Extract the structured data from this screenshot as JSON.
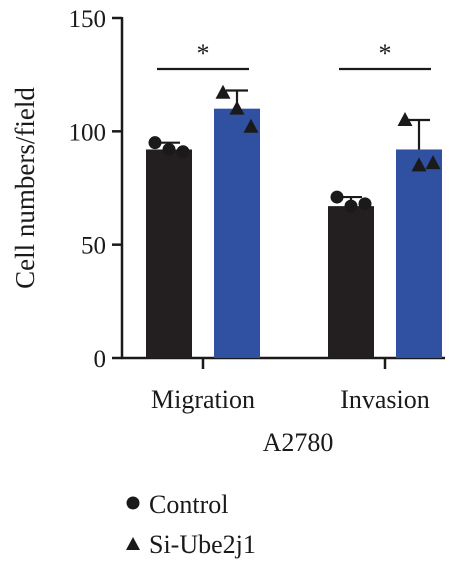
{
  "chart_data": {
    "type": "bar",
    "categories": [
      "Migration",
      "Invasion"
    ],
    "series": [
      {
        "name": "Control",
        "color": "#231f20",
        "marker": "circle",
        "values": [
          92,
          67
        ],
        "error": [
          3,
          4
        ],
        "points": [
          [
            95,
            92,
            91
          ],
          [
            71,
            67,
            68
          ]
        ]
      },
      {
        "name": "Si-Ube2j1",
        "color": "#3050a2",
        "marker": "triangle",
        "values": [
          110,
          92
        ],
        "error": [
          8,
          13
        ],
        "points": [
          [
            117,
            110,
            102
          ],
          [
            105,
            85,
            86
          ]
        ]
      }
    ],
    "significance": [
      "*",
      "*"
    ],
    "xlabel": "A2780",
    "ylabel": "Cell numbers/field",
    "ylim": [
      0,
      150
    ],
    "yticks": [
      0,
      50,
      100,
      150
    ],
    "grid": false,
    "legend": "bottom-left"
  }
}
